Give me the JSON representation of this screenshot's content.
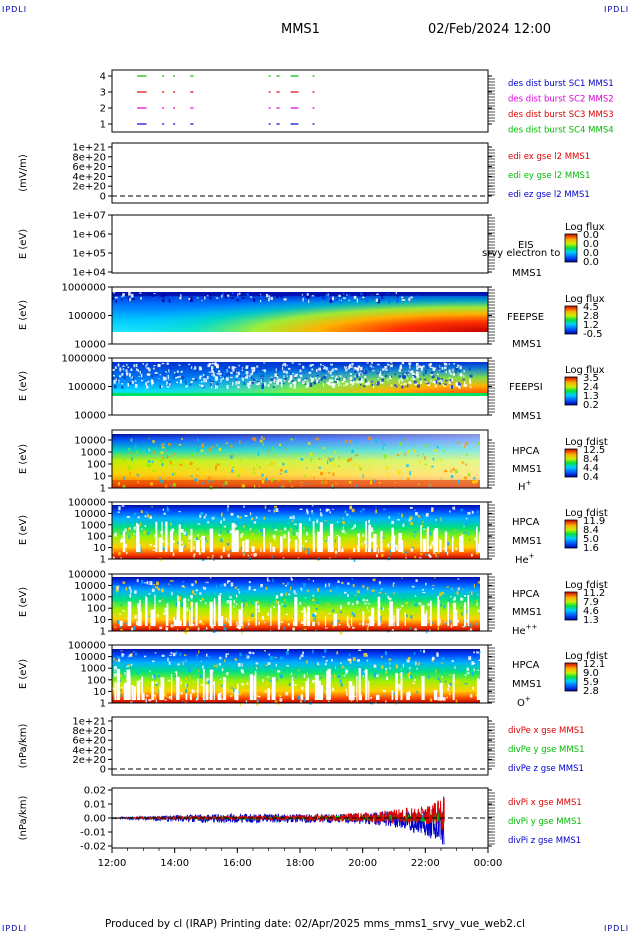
{
  "corner_label": "IPDLI",
  "header": {
    "mission": "MMS1",
    "date": "02/Feb/2024 12:00"
  },
  "footer": {
    "text": "Produced by cl (IRAP)   Printing date: 02/Apr/2025   mms_mms1_srvy_vue_web2.cl"
  },
  "time_axis": {
    "ticks": [
      "12:00",
      "14:00",
      "16:00",
      "18:00",
      "20:00",
      "22:00",
      "00:00"
    ]
  },
  "colors": {
    "red": "#dd0000",
    "green": "#00bb00",
    "blue": "#0000cc",
    "magenta": "#dd00dd"
  },
  "chart_data": [
    {
      "type": "line",
      "id": "burst",
      "yticks": [
        "4",
        "3",
        "2",
        "1"
      ],
      "legend": [
        {
          "name": "des dist burst SC1 MMS1",
          "color": "#0000cc"
        },
        {
          "name": "des dist burst SC2 MMS2",
          "color": "#dd00dd"
        },
        {
          "name": "des dist burst SC3 MMS3",
          "color": "#dd0000"
        },
        {
          "name": "des dist burst SC4 MMS4",
          "color": "#00bb00"
        }
      ],
      "intervals_hours": [
        [
          12.8,
          13.1
        ],
        [
          13.6,
          13.65
        ],
        [
          13.95,
          14.0
        ],
        [
          14.5,
          14.6
        ],
        [
          17.0,
          17.05
        ],
        [
          17.25,
          17.35
        ],
        [
          17.7,
          17.95
        ],
        [
          18.4,
          18.45
        ]
      ]
    },
    {
      "type": "line",
      "id": "edi",
      "ylabel": "(mV/m)",
      "yticks": [
        "1e+21",
        "8e+20",
        "6e+20",
        "4e+20",
        "2e+20",
        "0"
      ],
      "legend": [
        {
          "name": "edi ex gse l2 MMS1",
          "color": "#dd0000"
        },
        {
          "name": "edi ey gse l2 MMS1",
          "color": "#00bb00"
        },
        {
          "name": "edi ez gse l2 MMS1",
          "color": "#0000cc"
        }
      ]
    },
    {
      "type": "heatmap",
      "id": "eis",
      "ylabel": "E (eV)",
      "yticks": [
        "1e+07",
        "1e+06",
        "1e+05",
        "1e+04"
      ],
      "labels": [
        "EIS",
        "srvy electron to",
        "MMS1"
      ],
      "colorbar_title": "Log flux",
      "colorbar_ticks": [
        "0.0",
        "0.0",
        "0.0",
        "0.0"
      ]
    },
    {
      "type": "heatmap",
      "id": "feepse",
      "ylabel": "E (eV)",
      "yticks": [
        "1000000",
        "100000",
        "10000"
      ],
      "labels": [
        "FEEPSE",
        "MMS1"
      ],
      "colorbar_title": "Log flux",
      "colorbar_ticks": [
        "4.5",
        "2.8",
        "1.2",
        "-0.5"
      ]
    },
    {
      "type": "heatmap",
      "id": "feepsi",
      "ylabel": "E (eV)",
      "yticks": [
        "1000000",
        "100000",
        "10000"
      ],
      "labels": [
        "FEEPSI",
        "MMS1"
      ],
      "colorbar_title": "Log flux",
      "colorbar_ticks": [
        "3.5",
        "2.4",
        "1.3",
        "0.2"
      ]
    },
    {
      "type": "heatmap",
      "id": "hpca_h",
      "ylabel": "E (eV)",
      "yticks": [
        "10000",
        "1000",
        "100",
        "10",
        "1"
      ],
      "labels": [
        "HPCA",
        "MMS1"
      ],
      "species": "H",
      "charge": "+",
      "colorbar_title": "Log fdist",
      "colorbar_ticks": [
        "12.5",
        "8.4",
        "4.4",
        "0.4"
      ]
    },
    {
      "type": "heatmap",
      "id": "hpca_he1",
      "ylabel": "E (eV)",
      "yticks": [
        "100000",
        "10000",
        "1000",
        "100",
        "10",
        "1"
      ],
      "labels": [
        "HPCA",
        "MMS1"
      ],
      "species": "He",
      "charge": "+",
      "colorbar_title": "Log fdist",
      "colorbar_ticks": [
        "11.9",
        "8.4",
        "5.0",
        "1.6"
      ]
    },
    {
      "type": "heatmap",
      "id": "hpca_he2",
      "ylabel": "E (eV)",
      "yticks": [
        "100000",
        "10000",
        "1000",
        "100",
        "10",
        "1"
      ],
      "labels": [
        "HPCA",
        "MMS1"
      ],
      "species": "He",
      "charge": "++",
      "colorbar_title": "Log fdist",
      "colorbar_ticks": [
        "11.2",
        "7.9",
        "4.6",
        "1.3"
      ]
    },
    {
      "type": "heatmap",
      "id": "hpca_o",
      "ylabel": "E (eV)",
      "yticks": [
        "100000",
        "10000",
        "1000",
        "100",
        "10",
        "1"
      ],
      "labels": [
        "HPCA",
        "MMS1"
      ],
      "species": "O",
      "charge": "+",
      "colorbar_title": "Log fdist",
      "colorbar_ticks": [
        "12.1",
        "9.0",
        "5.9",
        "2.8"
      ]
    },
    {
      "type": "line",
      "id": "divpe",
      "ylabel": "(nPa/km)",
      "yticks": [
        "1e+21",
        "8e+20",
        "6e+20",
        "4e+20",
        "2e+20",
        "0"
      ],
      "legend": [
        {
          "name": "divPe x gse MMS1",
          "color": "#dd0000"
        },
        {
          "name": "divPe y gse MMS1",
          "color": "#00bb00"
        },
        {
          "name": "divPe z gse MMS1",
          "color": "#0000cc"
        }
      ]
    },
    {
      "type": "line",
      "id": "divpi",
      "ylabel": "(nPa/km)",
      "yticks": [
        "0.02",
        "0.01",
        "0.00",
        "-0.01",
        "-0.02"
      ],
      "ylim": [
        -0.025,
        0.025
      ],
      "legend": [
        {
          "name": "divPi x gse MMS1",
          "color": "#dd0000"
        },
        {
          "name": "divPi y gse MMS1",
          "color": "#00bb00"
        },
        {
          "name": "divPi z gse MMS1",
          "color": "#0000cc"
        }
      ],
      "envelope": {
        "x_hours": [
          12.0,
          13.0,
          14.0,
          15.0,
          16.0,
          17.0,
          18.0,
          19.0,
          20.0,
          21.0,
          22.0,
          22.6
        ],
        "blue_amplitude": [
          0.0005,
          0.0015,
          0.003,
          0.004,
          0.004,
          0.004,
          0.004,
          0.004,
          0.005,
          0.007,
          0.012,
          0.018
        ],
        "red_amplitude": [
          0.0003,
          0.0008,
          0.0012,
          0.0015,
          0.0015,
          0.0018,
          0.0025,
          0.003,
          0.0045,
          0.006,
          0.008,
          0.016
        ],
        "green_amplitude": [
          0.0002,
          0.0005,
          0.0008,
          0.001,
          0.001,
          0.0012,
          0.0015,
          0.002,
          0.0025,
          0.003,
          0.004,
          0.006
        ]
      }
    }
  ]
}
